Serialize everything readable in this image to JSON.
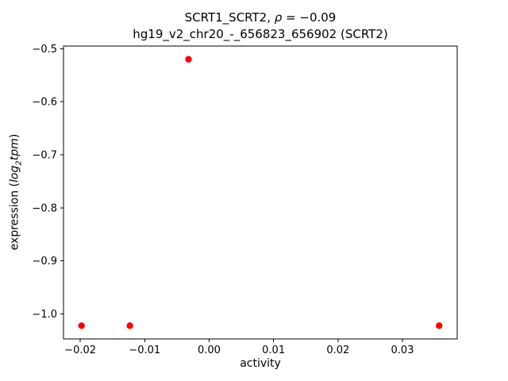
{
  "chart_data": {
    "type": "scatter",
    "title": {
      "line1_prefix": "SCRT1_SCRT2, ",
      "line1_rho": "ρ",
      "line1_suffix": " = −0.09",
      "line2": "hg19_v2_chr20_-_656823_656902 (SCRT2)"
    },
    "xlabel": "activity",
    "ylabel": {
      "prefix": "expression (",
      "log": "log",
      "sub": "2",
      "tpm": "tpm",
      "suffix": ")"
    },
    "marker": {
      "shape": "circle",
      "color": "#ff0000",
      "radius_px": 4.2
    },
    "points": [
      {
        "x": -0.0198,
        "y": -1.022
      },
      {
        "x": -0.0123,
        "y": -1.022
      },
      {
        "x": -0.0032,
        "y": -0.52
      },
      {
        "x": 0.0357,
        "y": -1.022
      }
    ],
    "xlim": [
      -0.0226,
      0.0385
    ],
    "ylim": [
      -1.047,
      -0.495
    ],
    "xticks": {
      "values": [
        -0.02,
        -0.01,
        0.0,
        0.01,
        0.02,
        0.03
      ],
      "labels": [
        "−0.02",
        "−0.01",
        "0.00",
        "0.01",
        "0.02",
        "0.03"
      ]
    },
    "yticks": {
      "values": [
        -0.5,
        -0.6,
        -0.7,
        -0.8,
        -0.9,
        -1.0
      ],
      "labels": [
        "−0.5",
        "−0.6",
        "−0.7",
        "−0.8",
        "−0.9",
        "−1.0"
      ]
    },
    "grid": false,
    "legend": null,
    "axes_color": "#000000",
    "background": "#ffffff"
  }
}
